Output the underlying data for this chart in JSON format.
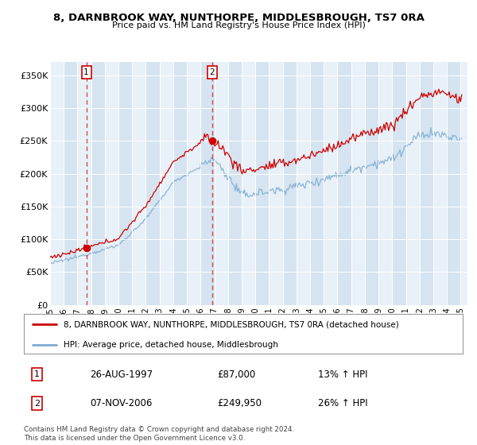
{
  "title1": "8, DARNBROOK WAY, NUNTHORPE, MIDDLESBROUGH, TS7 0RA",
  "title2": "Price paid vs. HM Land Registry's House Price Index (HPI)",
  "ylim": [
    0,
    370000
  ],
  "yticks": [
    0,
    50000,
    100000,
    150000,
    200000,
    250000,
    300000,
    350000
  ],
  "ytick_labels": [
    "£0",
    "£50K",
    "£100K",
    "£150K",
    "£200K",
    "£250K",
    "£300K",
    "£350K"
  ],
  "xlim_start": 1995.0,
  "xlim_end": 2025.5,
  "xtick_years": [
    1995,
    1996,
    1997,
    1998,
    1999,
    2000,
    2001,
    2002,
    2003,
    2004,
    2005,
    2006,
    2007,
    2008,
    2009,
    2010,
    2011,
    2012,
    2013,
    2014,
    2015,
    2016,
    2017,
    2018,
    2019,
    2020,
    2021,
    2022,
    2023,
    2024,
    2025
  ],
  "transaction1_x": 1997.65,
  "transaction1_y": 87000,
  "transaction2_x": 2006.85,
  "transaction2_y": 249950,
  "transaction1_date": "26-AUG-1997",
  "transaction1_price": "£87,000",
  "transaction1_hpi": "13% ↑ HPI",
  "transaction2_date": "07-NOV-2006",
  "transaction2_price": "£249,950",
  "transaction2_hpi": "26% ↑ HPI",
  "legend_label_red": "8, DARNBROOK WAY, NUNTHORPE, MIDDLESBROUGH, TS7 0RA (detached house)",
  "legend_label_blue": "HPI: Average price, detached house, Middlesbrough",
  "footnote": "Contains HM Land Registry data © Crown copyright and database right 2024.\nThis data is licensed under the Open Government Licence v3.0.",
  "red_color": "#cc0000",
  "blue_color": "#7aaacf",
  "plot_bg": "#dde8f2",
  "col_bg_light": "#e8f0f8",
  "col_bg_dark": "#d5e4f0"
}
